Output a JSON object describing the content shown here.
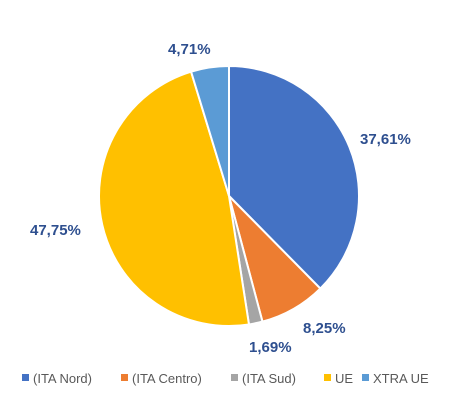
{
  "chart_data": {
    "type": "pie",
    "title": "",
    "categories": [
      "(ITA Nord)",
      "(ITA Centro)",
      "(ITA Sud)",
      "UE",
      "XTRA UE"
    ],
    "values": [
      37.61,
      8.25,
      1.69,
      47.75,
      4.71
    ],
    "data_labels": [
      "37,61%",
      "8,25%",
      "1,69%",
      "47,75%",
      "4,71%"
    ],
    "colors": [
      "#4472c4",
      "#ed7d31",
      "#a5a5a5",
      "#ffc000",
      "#5b9bd5"
    ],
    "start_angle": "12 o'clock",
    "direction": "clockwise",
    "legend": {
      "placement": "bottom",
      "entries": [
        "(ITA Nord)",
        "(ITA Centro)",
        "(ITA Sud)",
        "UE",
        "XTRA UE"
      ]
    },
    "label_color": "#2e4f8f"
  }
}
